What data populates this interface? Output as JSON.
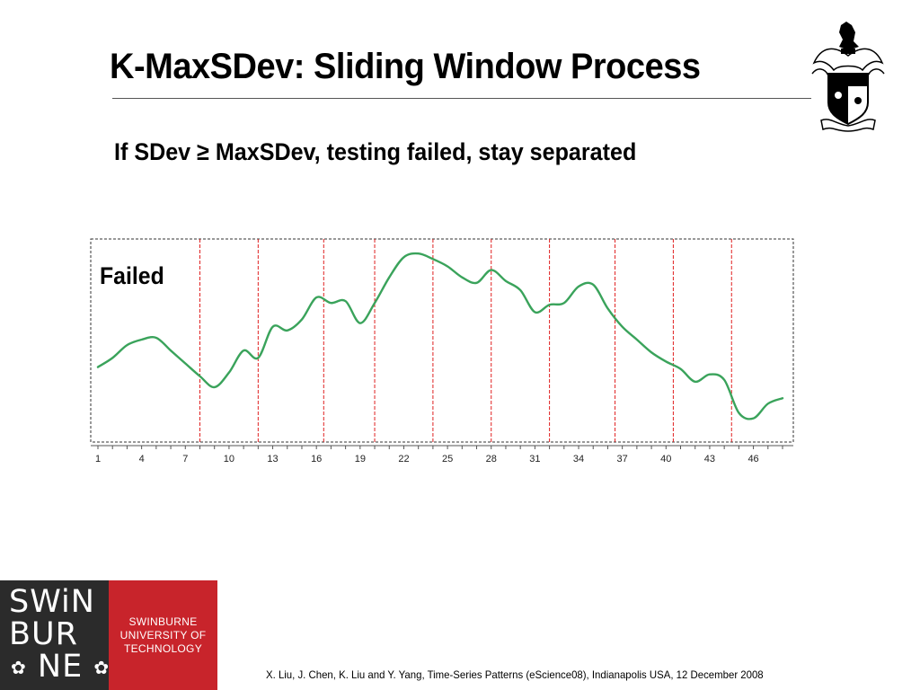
{
  "slide": {
    "title": "K-MaxSDev: Sliding Window Process",
    "subtitle": "If SDev ≥ MaxSDev, testing failed, stay separated",
    "citation": "X. Liu, J. Chen, K. Liu and Y. Yang, Time-Series Patterns (eScience08), Indianapolis USA, 12 December 2008"
  },
  "logo": {
    "lines": [
      "SWiN",
      "BUR",
      "NE"
    ],
    "institution": [
      "SWINBURNE",
      "UNIVERSITY OF",
      "TECHNOLOGY"
    ],
    "colors": {
      "dark": "#2b2b2b",
      "red": "#c8242b"
    }
  },
  "chart_data": {
    "type": "line",
    "annotation": "Failed",
    "x_range": [
      1,
      48
    ],
    "x_tick_labels": [
      "1",
      "4",
      "7",
      "10",
      "13",
      "16",
      "19",
      "22",
      "25",
      "28",
      "31",
      "34",
      "37",
      "40",
      "43",
      "46"
    ],
    "window_boundaries": [
      8,
      12,
      16.5,
      20,
      24,
      28,
      32,
      36.5,
      40.5,
      44.5
    ],
    "line_color": "#3aa35b",
    "boundary_color": "#e02020",
    "x": [
      1,
      2,
      3,
      4,
      5,
      6,
      7,
      8,
      9,
      10,
      11,
      12,
      13,
      14,
      15,
      16,
      17,
      18,
      19,
      20,
      21,
      22,
      23,
      24,
      25,
      26,
      27,
      28,
      29,
      30,
      31,
      32,
      33,
      34,
      35,
      36,
      37,
      38,
      39,
      40,
      41,
      42,
      43,
      44,
      45,
      46,
      47,
      48
    ],
    "values": [
      0.38,
      0.43,
      0.5,
      0.53,
      0.54,
      0.47,
      0.4,
      0.33,
      0.27,
      0.35,
      0.47,
      0.43,
      0.6,
      0.58,
      0.64,
      0.76,
      0.73,
      0.74,
      0.62,
      0.73,
      0.87,
      0.98,
      1.0,
      0.97,
      0.93,
      0.87,
      0.84,
      0.91,
      0.85,
      0.8,
      0.68,
      0.72,
      0.73,
      0.82,
      0.83,
      0.7,
      0.6,
      0.53,
      0.46,
      0.41,
      0.37,
      0.3,
      0.34,
      0.31,
      0.13,
      0.1,
      0.18,
      0.21
    ],
    "ylim": [
      0,
      1.05
    ]
  }
}
